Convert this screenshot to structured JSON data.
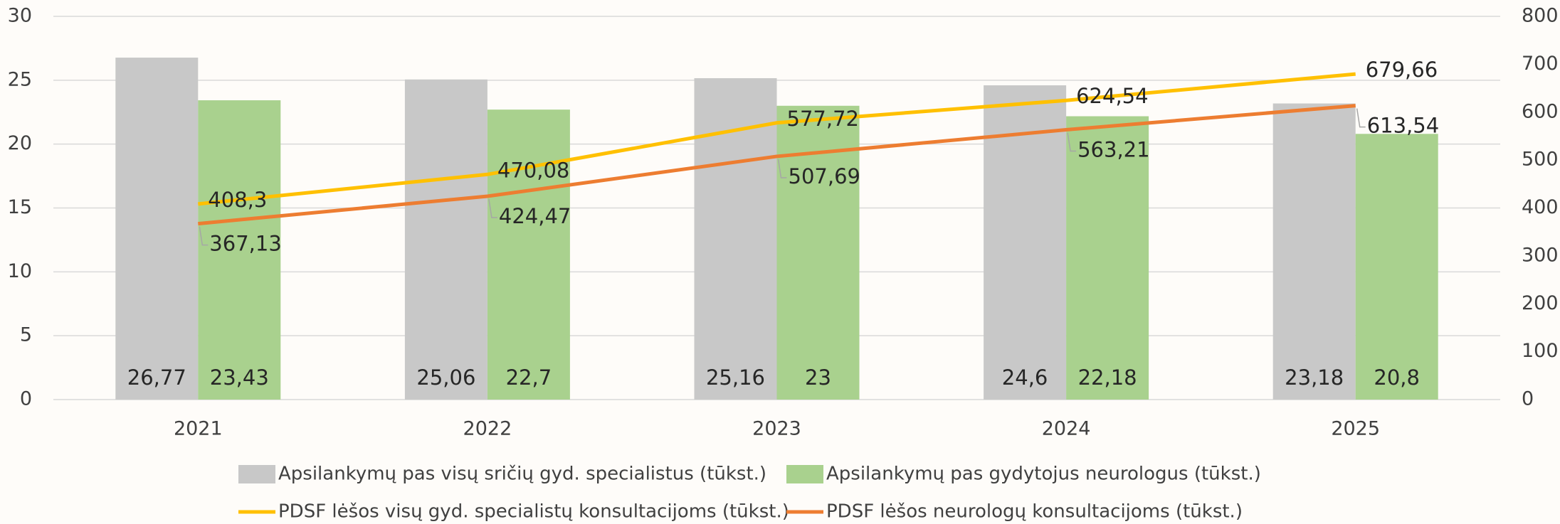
{
  "chart_data": {
    "type": "bar",
    "categories": [
      "2021",
      "2022",
      "2023",
      "2024",
      "2025"
    ],
    "series": [
      {
        "name": "Apsilankymų pas visų sričių gyd. specialistus  (tūkst.)",
        "type": "bar",
        "color": "#c8c8c8",
        "values": [
          26.77,
          25.06,
          25.16,
          24.6,
          23.18
        ],
        "value_labels": [
          "26,77",
          "25,06",
          "25,16",
          "24,6",
          "23,18"
        ]
      },
      {
        "name": "Apsilankymų pas gydytojus neurologus (tūkst.)",
        "type": "bar",
        "color": "#a9d18e",
        "values": [
          23.43,
          22.7,
          23,
          22.18,
          20.8
        ],
        "value_labels": [
          "23,43",
          "22,7",
          "23",
          "22,18",
          "20,8"
        ]
      },
      {
        "name": "PDSF lėšos visų gyd. specialistų konsultacijoms  (tūkst.)",
        "type": "line",
        "axis": "y2",
        "color": "#ffc000",
        "values": [
          408.3,
          470.08,
          577.72,
          624.54,
          679.66
        ],
        "value_labels": [
          "408,3",
          "470,08",
          "577,72",
          "624,54",
          "679,66"
        ]
      },
      {
        "name": "PDSF lėšos neurologų konsultacijoms (tūkst.)",
        "type": "line",
        "axis": "y2",
        "color": "#ed7d31",
        "values": [
          367.13,
          424.47,
          507.69,
          563.21,
          613.54
        ],
        "value_labels": [
          "367,13",
          "424,47",
          "507,69",
          "563,21",
          "613,54"
        ]
      }
    ],
    "ylim": [
      0,
      30
    ],
    "yticks": [
      0,
      5,
      10,
      15,
      20,
      25,
      30
    ],
    "y2lim": [
      0,
      800
    ],
    "y2ticks": [
      0,
      100,
      200,
      300,
      400,
      500,
      600,
      700,
      800
    ],
    "grid": true,
    "legend": "bottom"
  }
}
